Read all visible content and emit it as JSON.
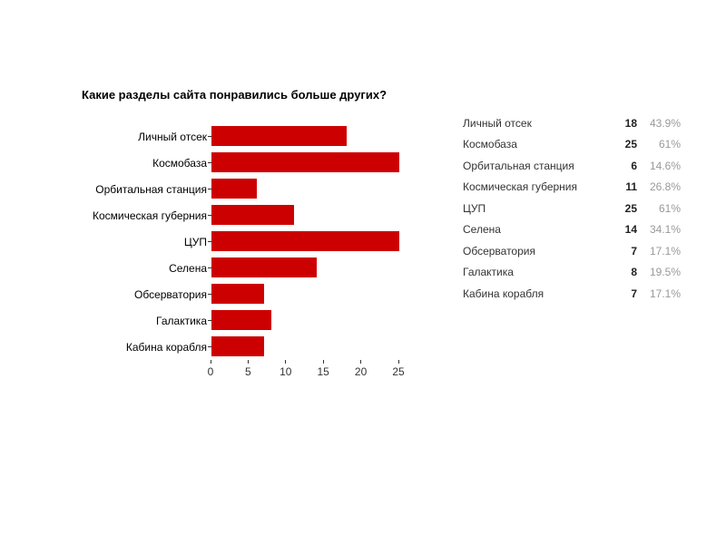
{
  "title": "Какие разделы сайта понравились больше других?",
  "colors": {
    "bar": "#cc0000",
    "label": "#000000",
    "count": "#222222",
    "percent": "#999999"
  },
  "chart_data": {
    "type": "bar",
    "orientation": "horizontal",
    "title": "Какие разделы сайта понравились больше других?",
    "categories": [
      "Личный отсек",
      "Космобаза",
      "Орбитальная станция",
      "Космическая губерния",
      "ЦУП",
      "Селена",
      "Обсерватория",
      "Галактика",
      "Кабина корабля"
    ],
    "values": [
      18,
      25,
      6,
      11,
      25,
      14,
      7,
      8,
      7
    ],
    "percents": [
      "43.9%",
      "61%",
      "14.6%",
      "26.8%",
      "61%",
      "34.1%",
      "17.1%",
      "19.5%",
      "17.1%"
    ],
    "xlabel": "",
    "ylabel": "",
    "xlim": [
      0,
      25
    ],
    "xticks": [
      0,
      5,
      10,
      15,
      20,
      25
    ],
    "grid": false,
    "legend_position": "right-table"
  }
}
